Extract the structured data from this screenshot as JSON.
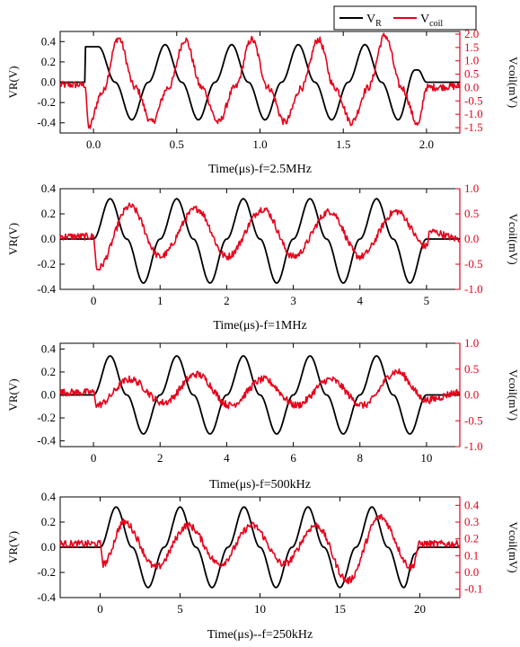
{
  "legend": {
    "items": [
      {
        "name": "V",
        "sub": "R",
        "color": "#000000"
      },
      {
        "name": "V",
        "sub": "coil",
        "color": "#e8001a"
      }
    ]
  },
  "colors": {
    "vr": "#000000",
    "vcoil": "#e8001a"
  },
  "chart_data": [
    {
      "type": "line",
      "title": "",
      "xlabel": "Time(μs)-f=2.5MHz",
      "ylabel": "VR(V)",
      "y2label": "Vcoil(mV)",
      "xlim": [
        -0.2,
        2.2
      ],
      "ylim": [
        -0.5,
        0.5
      ],
      "y2lim": [
        -1.7,
        2.1
      ],
      "xticks": [
        0.0,
        0.5,
        1.0,
        1.5,
        2.0
      ],
      "yticks": [
        -0.4,
        -0.2,
        0.0,
        0.2,
        0.4
      ],
      "y2ticks": [
        -1.5,
        -1.0,
        -0.5,
        0.0,
        0.5,
        1.0,
        1.5,
        2.0
      ],
      "xtick_labels": [
        "0.0",
        "0.5",
        "1.0",
        "1.5",
        "2.0"
      ],
      "ytick_labels": [
        "-0.4",
        "-0.2",
        "0.0",
        "0.2",
        "0.4"
      ],
      "y2tick_labels": [
        "-1.5",
        "-1.0",
        "-0.5",
        "0.0",
        "0.5",
        "1.0",
        "1.5",
        "2.0"
      ],
      "series": [
        {
          "name": "VR",
          "axis": "left",
          "x": [
            -0.2,
            -0.05,
            -0.05,
            0.03,
            0.13,
            0.23,
            0.33,
            0.43,
            0.53,
            0.63,
            0.73,
            0.83,
            0.93,
            1.03,
            1.13,
            1.23,
            1.33,
            1.43,
            1.53,
            1.63,
            1.73,
            1.83,
            1.93,
            1.95,
            2.0,
            2.2
          ],
          "y": [
            0.0,
            0.0,
            0.35,
            0.35,
            0.0,
            -0.37,
            0.0,
            0.37,
            0.0,
            -0.37,
            0.0,
            0.37,
            0.0,
            -0.37,
            0.0,
            0.37,
            0.0,
            -0.37,
            0.0,
            0.37,
            0.0,
            -0.37,
            0.12,
            0.12,
            0.0,
            0.0
          ]
        },
        {
          "name": "Vcoil",
          "axis": "right",
          "x": [
            -0.2,
            -0.05,
            -0.03,
            0.05,
            0.15,
            0.25,
            0.35,
            0.45,
            0.55,
            0.65,
            0.75,
            0.85,
            0.95,
            1.05,
            1.15,
            1.25,
            1.35,
            1.45,
            1.55,
            1.65,
            1.75,
            1.85,
            1.95,
            2.0,
            2.2
          ],
          "y": [
            0.1,
            0.1,
            -1.5,
            -0.2,
            1.85,
            0.0,
            -1.3,
            0.0,
            1.8,
            0.0,
            -1.3,
            0.0,
            1.8,
            0.0,
            -1.3,
            0.0,
            1.8,
            0.0,
            -1.3,
            0.0,
            1.95,
            0.0,
            -1.4,
            0.0,
            0.05
          ]
        }
      ]
    },
    {
      "type": "line",
      "title": "",
      "xlabel": "Time(μs)-f=1MHz",
      "ylabel": "VR(V)",
      "y2label": "Vcoil(mV)",
      "xlim": [
        -0.5,
        5.5
      ],
      "ylim": [
        -0.4,
        0.4
      ],
      "y2lim": [
        -1.0,
        1.0
      ],
      "xticks": [
        0,
        1,
        2,
        3,
        4,
        5
      ],
      "yticks": [
        -0.4,
        -0.2,
        0.0,
        0.2,
        0.4
      ],
      "y2ticks": [
        -1.0,
        -0.5,
        0.0,
        0.5,
        1.0
      ],
      "xtick_labels": [
        "0",
        "1",
        "2",
        "3",
        "4",
        "5"
      ],
      "ytick_labels": [
        "-0.4",
        "-0.2",
        "0.0",
        "0.2",
        "0.4"
      ],
      "y2tick_labels": [
        "-1.0",
        "-0.5",
        "0.0",
        "0.5",
        "1.0"
      ],
      "series": [
        {
          "name": "VR",
          "axis": "left",
          "x": [
            -0.5,
            0.0,
            0.25,
            0.5,
            0.75,
            1.0,
            1.25,
            1.5,
            1.75,
            2.0,
            2.25,
            2.5,
            2.75,
            3.0,
            3.25,
            3.5,
            3.75,
            4.0,
            4.25,
            4.5,
            4.75,
            5.0,
            5.5
          ],
          "y": [
            0.0,
            0.0,
            0.32,
            0.0,
            -0.35,
            0.0,
            0.32,
            0.0,
            -0.35,
            0.0,
            0.32,
            0.0,
            -0.35,
            0.0,
            0.32,
            0.0,
            -0.35,
            0.0,
            0.32,
            0.0,
            -0.35,
            0.0,
            0.0
          ]
        },
        {
          "name": "Vcoil",
          "axis": "right",
          "x": [
            -0.5,
            0.0,
            0.05,
            0.55,
            1.0,
            1.55,
            2.0,
            2.55,
            3.0,
            3.55,
            4.0,
            4.55,
            5.0,
            5.05,
            5.5
          ],
          "y": [
            0.05,
            0.05,
            -0.6,
            0.65,
            -0.35,
            0.6,
            -0.35,
            0.6,
            -0.35,
            0.55,
            -0.35,
            0.55,
            -0.15,
            0.15,
            0.0
          ]
        }
      ]
    },
    {
      "type": "line",
      "title": "",
      "xlabel": "Time(μs)-f=500kHz",
      "ylabel": "VR(V)",
      "y2label": "Vcoil(mV)",
      "xlim": [
        -1.0,
        11.0
      ],
      "ylim": [
        -0.45,
        0.45
      ],
      "y2lim": [
        -1.0,
        1.0
      ],
      "xticks": [
        0,
        2,
        4,
        6,
        8,
        10
      ],
      "yticks": [
        -0.4,
        -0.2,
        0.0,
        0.2,
        0.4
      ],
      "y2ticks": [
        -1.0,
        -0.5,
        0.0,
        0.5,
        1.0
      ],
      "xtick_labels": [
        "0",
        "2",
        "4",
        "6",
        "8",
        "10"
      ],
      "ytick_labels": [
        "-0.4",
        "-0.2",
        "0.0",
        "0.2",
        "0.4"
      ],
      "y2tick_labels": [
        "-1.0",
        "-0.5",
        "0.0",
        "0.5",
        "1.0"
      ],
      "series": [
        {
          "name": "VR",
          "axis": "left",
          "x": [
            -1.0,
            0.0,
            0.5,
            1.0,
            1.5,
            2.0,
            2.5,
            3.0,
            3.5,
            4.0,
            4.5,
            5.0,
            5.5,
            6.0,
            6.5,
            7.0,
            7.5,
            8.0,
            8.5,
            9.0,
            9.5,
            10.0,
            11.0
          ],
          "y": [
            0.0,
            0.0,
            0.34,
            0.0,
            -0.34,
            0.0,
            0.34,
            0.0,
            -0.34,
            0.0,
            0.34,
            0.0,
            -0.34,
            0.0,
            0.34,
            0.0,
            -0.34,
            0.0,
            0.34,
            0.0,
            -0.34,
            0.0,
            0.0
          ]
        },
        {
          "name": "Vcoil",
          "axis": "right",
          "x": [
            -1.0,
            0.0,
            0.1,
            1.1,
            2.1,
            3.1,
            4.1,
            5.1,
            6.1,
            7.1,
            8.1,
            9.1,
            10.0,
            11.0
          ],
          "y": [
            0.05,
            0.05,
            -0.2,
            0.3,
            -0.15,
            0.4,
            -0.2,
            0.3,
            -0.2,
            0.3,
            -0.2,
            0.45,
            -0.1,
            0.05
          ]
        }
      ]
    },
    {
      "type": "line",
      "title": "",
      "xlabel": "Time(μs)--f=250kHz",
      "ylabel": "VR(V)",
      "y2label": "Vcoil(mV)",
      "xlim": [
        -2.5,
        22.5
      ],
      "ylim": [
        -0.4,
        0.4
      ],
      "y2lim": [
        -0.15,
        0.45
      ],
      "xticks": [
        0,
        5,
        10,
        15,
        20
      ],
      "yticks": [
        -0.4,
        -0.2,
        0.0,
        0.2,
        0.4
      ],
      "y2ticks": [
        -0.1,
        0.0,
        0.1,
        0.2,
        0.3,
        0.4
      ],
      "xtick_labels": [
        "0",
        "5",
        "10",
        "15",
        "20"
      ],
      "ytick_labels": [
        "-0.4",
        "-0.2",
        "0.0",
        "0.2",
        "0.4"
      ],
      "y2tick_labels": [
        "-0.1",
        "0.0",
        "0.1",
        "0.2",
        "0.3",
        "0.4"
      ],
      "series": [
        {
          "name": "VR",
          "axis": "left",
          "x": [
            -2.5,
            0.0,
            1.0,
            2.0,
            3.0,
            4.0,
            5.0,
            6.0,
            7.0,
            8.0,
            9.0,
            10.0,
            11.0,
            12.0,
            13.0,
            14.0,
            15.0,
            16.0,
            17.0,
            18.0,
            19.0,
            19.7,
            20.0,
            22.5
          ],
          "y": [
            0.0,
            0.0,
            0.32,
            0.0,
            -0.32,
            0.0,
            0.32,
            0.0,
            -0.32,
            0.0,
            0.32,
            0.0,
            -0.32,
            0.0,
            0.32,
            0.0,
            -0.32,
            0.0,
            0.32,
            0.0,
            -0.32,
            -0.05,
            0.0,
            0.0
          ]
        },
        {
          "name": "Vcoil",
          "axis": "right",
          "x": [
            -2.5,
            0.0,
            0.2,
            1.5,
            3.5,
            5.5,
            7.5,
            9.5,
            11.5,
            13.5,
            15.5,
            17.5,
            19.5,
            20.0,
            22.5
          ],
          "y": [
            0.17,
            0.17,
            0.05,
            0.3,
            0.03,
            0.28,
            0.05,
            0.28,
            0.05,
            0.28,
            -0.05,
            0.33,
            0.03,
            0.17,
            0.17
          ]
        }
      ]
    }
  ]
}
